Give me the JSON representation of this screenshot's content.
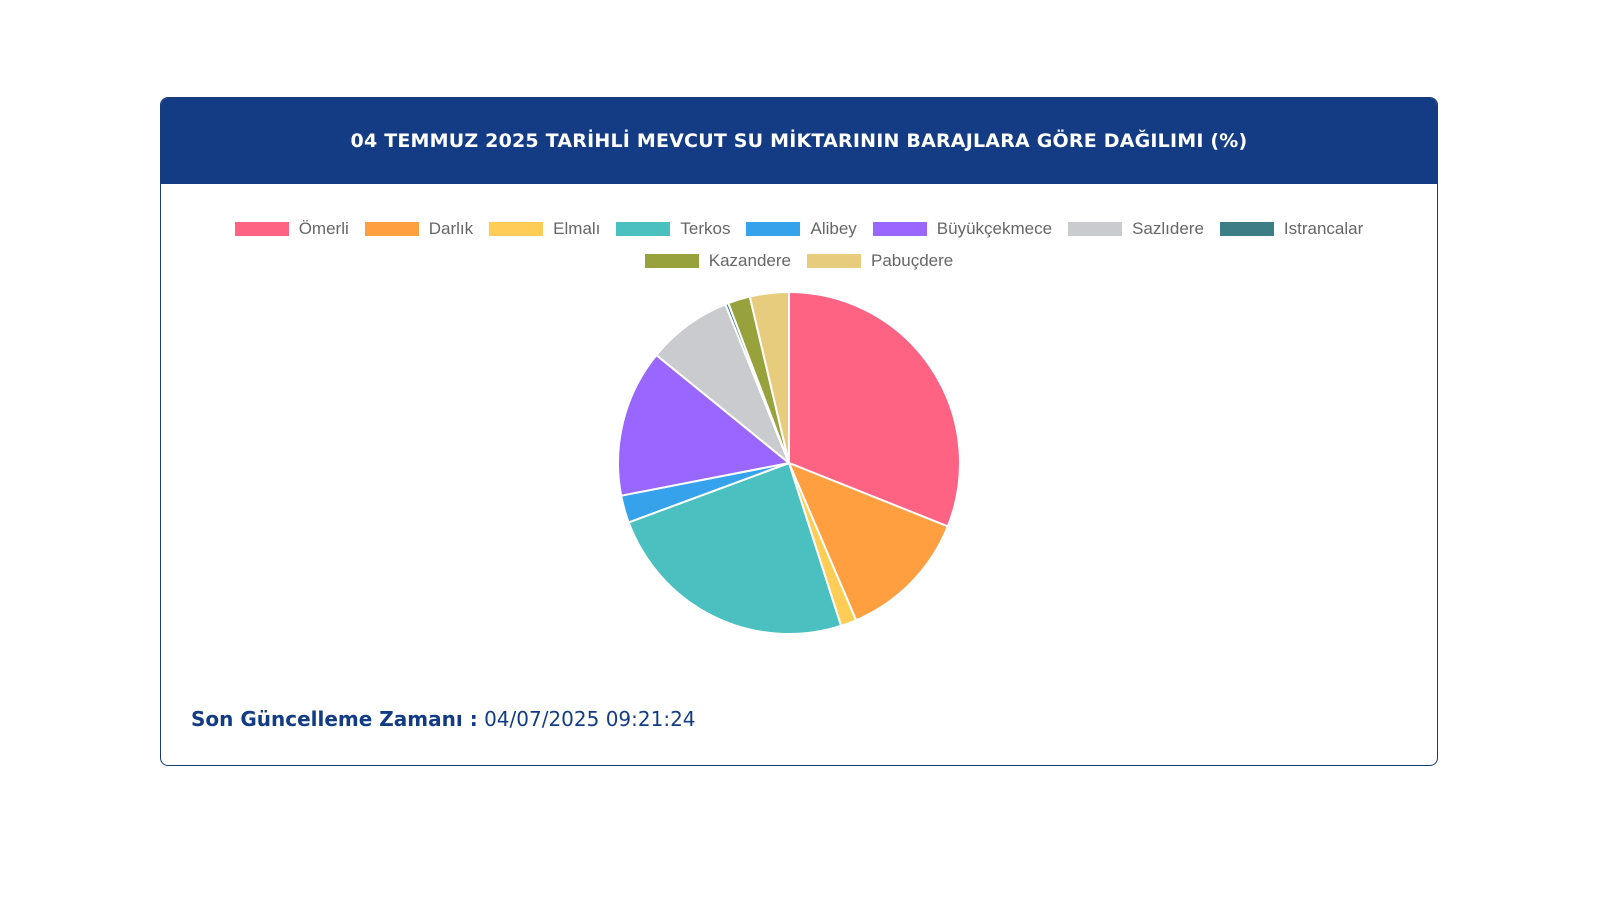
{
  "title": "04 TEMMUZ 2025 TARİHLİ MEVCUT SU MİKTARININ BARAJLARA GÖRE DAĞILIMI (%)",
  "footer": {
    "label": "Son Güncelleme Zamanı :",
    "value": "04/07/2025 09:21:24"
  },
  "colors": {
    "header_bg": "#133c84",
    "accent": "#133c84"
  },
  "chart_data": {
    "type": "pie",
    "title": "04 TEMMUZ 2025 TARİHLİ MEVCUT SU MİKTARININ BARAJLARA GÖRE DAĞILIMI (%)",
    "legend_position": "top",
    "labels": [
      "Ömerli",
      "Darlık",
      "Elmalı",
      "Terkos",
      "Alibey",
      "Büyükçekmece",
      "Sazlıdere",
      "Istrancalar",
      "Kazandere",
      "Pabuçdere"
    ],
    "values": [
      31.2,
      12.6,
      1.5,
      24.4,
      2.6,
      14.0,
      8.1,
      0.3,
      2.1,
      3.7
    ],
    "colors": [
      "#ff6384",
      "#ff9f40",
      "#ffcd56",
      "#4bc0c0",
      "#36a2eb",
      "#9966ff",
      "#c9cbcf",
      "#3d7d85",
      "#97a23c",
      "#e8cc7e"
    ]
  }
}
